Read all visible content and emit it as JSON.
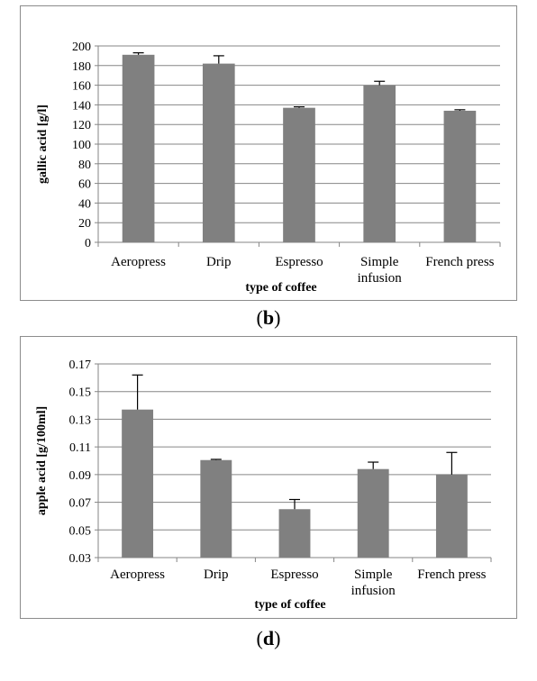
{
  "chart_data": [
    {
      "type": "bar",
      "caption_open": "(",
      "caption_letter": "b",
      "caption_close": ")",
      "xlabel": "type of coffee",
      "ylabel": "gallic acid [g/l]",
      "categories": [
        {
          "line1": "Aeropress",
          "line2": ""
        },
        {
          "line1": "Drip",
          "line2": ""
        },
        {
          "line1": "Espresso",
          "line2": ""
        },
        {
          "line1": "Simple",
          "line2": "infusion"
        },
        {
          "line1": "French press",
          "line2": ""
        }
      ],
      "values": [
        191,
        182,
        137,
        160,
        134
      ],
      "errors": [
        2,
        8,
        1,
        4,
        1
      ],
      "ylim": [
        0,
        200
      ],
      "yticks": [
        "0",
        "20",
        "40",
        "60",
        "80",
        "100",
        "120",
        "140",
        "160",
        "180",
        "200"
      ],
      "grid": true,
      "colors": {
        "bar": "#808080",
        "grid": "#868686",
        "frame": "#8c8c8c",
        "error": "#000000"
      }
    },
    {
      "type": "bar",
      "caption_open": "(",
      "caption_letter": "d",
      "caption_close": ")",
      "xlabel": "type of coffee",
      "ylabel": "apple acid [g/100ml]",
      "categories": [
        {
          "line1": "Aeropress",
          "line2": ""
        },
        {
          "line1": "Drip",
          "line2": ""
        },
        {
          "line1": "Espresso",
          "line2": ""
        },
        {
          "line1": "Simple",
          "line2": "infusion"
        },
        {
          "line1": "French press",
          "line2": ""
        }
      ],
      "values": [
        0.137,
        0.1005,
        0.065,
        0.094,
        0.09
      ],
      "errors": [
        0.025,
        0.0005,
        0.007,
        0.005,
        0.016
      ],
      "ylim": [
        0.03,
        0.17
      ],
      "yticks": [
        "0.03",
        "0.05",
        "0.07",
        "0.09",
        "0.11",
        "0.13",
        "0.15",
        "0.17"
      ],
      "grid": true,
      "colors": {
        "bar": "#808080",
        "grid": "#868686",
        "frame": "#8c8c8c",
        "error": "#000000"
      }
    }
  ]
}
